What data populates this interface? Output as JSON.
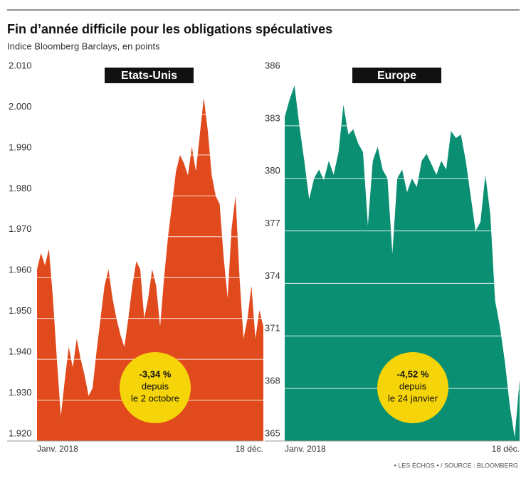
{
  "header": {
    "title": "Fin d’année difficile pour les obligations spéculatives",
    "subtitle": "Indice Bloomberg Barclays, en points"
  },
  "source": "• LES ÉCHOS • / SOURCE : BLOOMBERG",
  "chart_data": [
    {
      "type": "area",
      "title": "Etats-Unis",
      "color": "#e04a1c",
      "categories": [
        "Janv. 2018",
        null,
        null,
        null,
        null,
        null,
        null,
        null,
        null,
        null,
        null,
        null,
        null,
        null,
        null,
        null,
        null,
        null,
        null,
        null,
        null,
        null,
        null,
        null,
        null,
        null,
        null,
        null,
        null,
        null,
        null,
        null,
        null,
        null,
        null,
        null,
        null,
        null,
        null,
        null,
        null,
        null,
        null,
        null,
        null,
        null,
        null,
        null,
        null,
        null,
        null,
        null,
        null,
        null,
        null,
        null,
        null,
        "18 déc."
      ],
      "values": [
        1962,
        1966,
        1963,
        1967,
        1955,
        1940,
        1926,
        1935,
        1943,
        1938,
        1945,
        1940,
        1936,
        1931,
        1933,
        1942,
        1950,
        1958,
        1962,
        1955,
        1950,
        1946,
        1943,
        1950,
        1958,
        1964,
        1962,
        1950,
        1955,
        1962,
        1958,
        1948,
        1960,
        1970,
        1978,
        1986,
        1990,
        1988,
        1985,
        1992,
        1986,
        1995,
        2004,
        1996,
        1985,
        1980,
        1978,
        1965,
        1955,
        1972,
        1980,
        1960,
        1945,
        1950,
        1958,
        1945,
        1952,
        1948
      ],
      "ylim": [
        1920,
        2010
      ],
      "yticks": [
        {
          "value": 1920,
          "label": "1.920"
        },
        {
          "value": 1930,
          "label": "1.930"
        },
        {
          "value": 1940,
          "label": "1.940"
        },
        {
          "value": 1950,
          "label": "1.950"
        },
        {
          "value": 1960,
          "label": "1.960"
        },
        {
          "value": 1970,
          "label": "1.970"
        },
        {
          "value": 1980,
          "label": "1.980"
        },
        {
          "value": 1990,
          "label": "1.990"
        },
        {
          "value": 2000,
          "label": "2.000"
        },
        {
          "value": 2010,
          "label": "2.010"
        }
      ],
      "annotation": [
        "-3,34 %",
        "depuis",
        "le 2 octobre"
      ],
      "grid": true
    },
    {
      "type": "area",
      "title": "Europe",
      "color": "#0a8f72",
      "categories": [
        "Janv. 2018",
        null,
        null,
        null,
        null,
        null,
        null,
        null,
        null,
        null,
        null,
        null,
        null,
        null,
        null,
        null,
        null,
        null,
        null,
        null,
        null,
        null,
        null,
        null,
        null,
        null,
        null,
        null,
        null,
        null,
        null,
        null,
        null,
        null,
        null,
        null,
        null,
        null,
        null,
        null,
        null,
        null,
        null,
        null,
        null,
        null,
        null,
        null,
        "18 déc."
      ],
      "values": [
        383.5,
        384.5,
        385.3,
        383,
        381,
        378.8,
        380,
        380.5,
        379.9,
        381,
        380.2,
        381.5,
        384.2,
        382.5,
        382.8,
        382,
        381.5,
        377.3,
        381,
        381.8,
        380.5,
        380,
        375.7,
        380,
        380.5,
        379.2,
        380,
        379.5,
        381,
        381.4,
        380.8,
        380.2,
        381,
        380.5,
        382.7,
        382.3,
        382.5,
        381,
        379,
        377,
        377.5,
        380.2,
        378,
        373,
        371.5,
        369.5,
        367,
        365.2,
        368.5
      ],
      "ylim": [
        365,
        386
      ],
      "yticks": [
        365,
        368,
        371,
        374,
        377,
        380,
        383,
        386
      ],
      "annotation": [
        "-4,52 %",
        "depuis",
        "le 24 janvier"
      ],
      "grid": true
    }
  ]
}
